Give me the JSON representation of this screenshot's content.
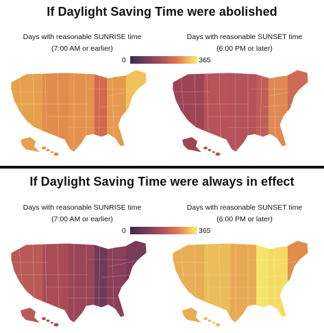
{
  "sections": [
    {
      "title": "If Daylight Saving Time were abolished",
      "left_caption_line1": "Days with reasonable SUNRISE time",
      "left_caption_line2": "(7:00 AM or earlier)",
      "right_caption_line1": "Days with reasonable SUNSET time",
      "right_caption_line2": "(6:00 PM or later)",
      "legend_min": "0",
      "legend_max": "365"
    },
    {
      "title": "If Daylight Saving Time were always in effect",
      "left_caption_line1": "Days with reasonable SUNRISE time",
      "left_caption_line2": "(7:00 AM or earlier)",
      "right_caption_line1": "Days with reasonable SUNSET time",
      "right_caption_line2": "(6:00 PM or later)",
      "legend_min": "0",
      "legend_max": "365"
    }
  ],
  "colors": {
    "scale_low": "#3b2a4a",
    "scale_high": "#f8f06b",
    "divider": "#111111"
  },
  "maps": {
    "top_left": {
      "fills": [
        "#e7a04e",
        "#e08d4c",
        "#e5924f",
        "#d2684e",
        "#e59a4f",
        "#f0c25a"
      ]
    },
    "top_right": {
      "fills": [
        "#9e4457",
        "#b8535a",
        "#b5525a",
        "#c25e5a",
        "#de8a52",
        "#cd6954"
      ]
    },
    "bottom_left": {
      "fills": [
        "#b85a56",
        "#a84c58",
        "#9a4557",
        "#6e3a5a",
        "#8a3f5a",
        "#7a3a5a"
      ]
    },
    "bottom_right": {
      "fills": [
        "#e9ae55",
        "#eabd5a",
        "#e8a955",
        "#f5e36a",
        "#f3db65",
        "#e08d4c"
      ]
    }
  }
}
